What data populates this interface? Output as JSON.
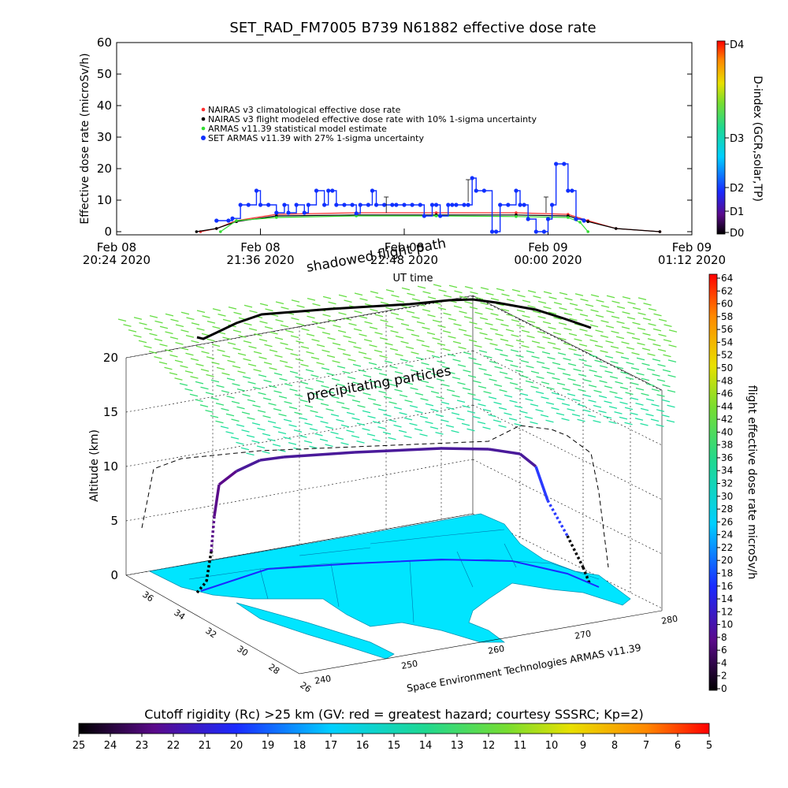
{
  "chart_data": [
    {
      "type": "line",
      "title": "SET_RAD_FM7005   B739 N61882 effective dose rate",
      "ylabel": "Effective dose rate (microSv/h)",
      "xlabel": "UT time",
      "ylim": [
        0,
        60
      ],
      "yticks": [
        "0",
        "10",
        "20",
        "30",
        "40",
        "50",
        "60"
      ],
      "xticks": [
        {
          "date": "Feb 08",
          "time": "20:24 2020"
        },
        {
          "date": "Feb 08",
          "time": "21:36 2020"
        },
        {
          "date": "Feb 08",
          "time": "22:48 2020"
        },
        {
          "date": "Feb 09",
          "time": "00:00 2020"
        },
        {
          "date": "Feb 09",
          "time": "01:12 2020"
        }
      ],
      "x_unit": "minutes after Feb 08 20:24 2020 UT",
      "xlim": [
        0,
        288
      ],
      "legend": [
        "NAIRAS v3 climatological effective dose rate",
        "NAIRAS v3 flight modeled effective dose rate with 10% 1-sigma uncertainty",
        "ARMAS v11.39 statistical model estimate",
        "SET ARMAS v11.39 with 27% 1-sigma uncertainty"
      ],
      "series": [
        {
          "name": "NAIRAS v3 climatological effective dose rate",
          "color": "#ff3030",
          "x": [
            42,
            50,
            60,
            80,
            120,
            160,
            200,
            226,
            236,
            250,
            272
          ],
          "y": [
            0,
            1,
            3.5,
            5.5,
            6,
            6,
            6,
            5.5,
            3.5,
            1,
            0
          ]
        },
        {
          "name": "NAIRAS v3 flight modeled effective dose rate with 10% 1-sigma uncertainty",
          "color": "#000000",
          "x": [
            40,
            50,
            60,
            80,
            120,
            160,
            200,
            226,
            236,
            250,
            272
          ],
          "y": [
            0,
            1,
            3.2,
            5,
            5.3,
            5.3,
            5.3,
            5,
            3.2,
            1,
            0
          ]
        },
        {
          "name": "ARMAS v11.39 statistical model estimate",
          "color": "#33dd33",
          "x": [
            52,
            60,
            80,
            120,
            160,
            200,
            226,
            232,
            236
          ],
          "y": [
            0,
            3.5,
            4.5,
            5,
            5,
            4.8,
            4.5,
            3,
            0
          ]
        },
        {
          "name": "SET ARMAS v11.39 with 27% 1-sigma uncertainty",
          "color": "#1030ff",
          "x": [
            50,
            56,
            58,
            62,
            66,
            70,
            72,
            76,
            80,
            84,
            86,
            90,
            94,
            96,
            100,
            104,
            106,
            108,
            110,
            114,
            118,
            120,
            122,
            126,
            128,
            130,
            134,
            138,
            140,
            144,
            148,
            152,
            154,
            158,
            160,
            162,
            166,
            168,
            170,
            174,
            176,
            178,
            180,
            184,
            188,
            190,
            192,
            196,
            200,
            202,
            204,
            206,
            210,
            214,
            216,
            218,
            220,
            224,
            226,
            228,
            230,
            234
          ],
          "y": [
            3.5,
            3.5,
            4.2,
            8.5,
            8.5,
            13,
            8.5,
            8.5,
            6,
            8.5,
            6,
            8.5,
            6,
            8.5,
            13,
            8.5,
            13,
            13,
            8.5,
            8.5,
            8.5,
            5.8,
            8.5,
            8.5,
            13,
            8.5,
            8.5,
            8.5,
            8.5,
            8.5,
            8.5,
            8.5,
            5,
            8.5,
            8.5,
            5,
            8.5,
            8.5,
            8.5,
            8.5,
            8.5,
            17,
            13,
            13,
            0,
            0,
            8.5,
            8.5,
            13,
            8.5,
            8.5,
            4,
            0,
            0,
            4,
            8.5,
            21.5,
            21.5,
            13,
            13,
            4,
            3.5
          ]
        }
      ],
      "colorbar": {
        "label": "D-index (GCR,solar,TP)",
        "ticks": [
          "D0",
          "D1",
          "D2",
          "D3",
          "D4"
        ]
      }
    },
    {
      "type": "scatter",
      "subtype": "3d flight track over map",
      "zlabel": "Altitude (km)",
      "zlim": [
        0,
        20
      ],
      "zticks": [
        "0",
        "5",
        "10",
        "15",
        "20"
      ],
      "lat_ticks": [
        "26",
        "28",
        "30",
        "32",
        "34",
        "36"
      ],
      "lon_ticks": [
        "240",
        "250",
        "260",
        "270",
        "280"
      ],
      "annotations": [
        "shadowed flight path",
        "precipitating particles"
      ],
      "credit": "Space Environment Technologies ARMAS v11.39",
      "flight_track_altitude_km": [
        0,
        2,
        6,
        8.5,
        10,
        10.8,
        11.2,
        11.4,
        11.8,
        11.8,
        11.6,
        10.6,
        8,
        5,
        2,
        0
      ],
      "colorbar": {
        "label": "flight effective dose rate microSv/h",
        "ticks": [
          "0",
          "2",
          "4",
          "6",
          "8",
          "10",
          "12",
          "14",
          "16",
          "18",
          "20",
          "22",
          "24",
          "26",
          "28",
          "30",
          "32",
          "34",
          "36",
          "38",
          "40",
          "42",
          "44",
          "46",
          "48",
          "50",
          "52",
          "54",
          "56",
          "58",
          "60",
          "62",
          "64"
        ]
      }
    },
    {
      "type": "heatmap",
      "title": "Cutoff rigidity (Rc) >25 km (GV: red = greatest hazard; courtesy SSSRC; Kp=2)",
      "ticks": [
        "25",
        "24",
        "23",
        "22",
        "21",
        "20",
        "19",
        "18",
        "17",
        "16",
        "15",
        "14",
        "13",
        "12",
        "11",
        "10",
        "9",
        "8",
        "7",
        "6",
        "5"
      ]
    }
  ]
}
